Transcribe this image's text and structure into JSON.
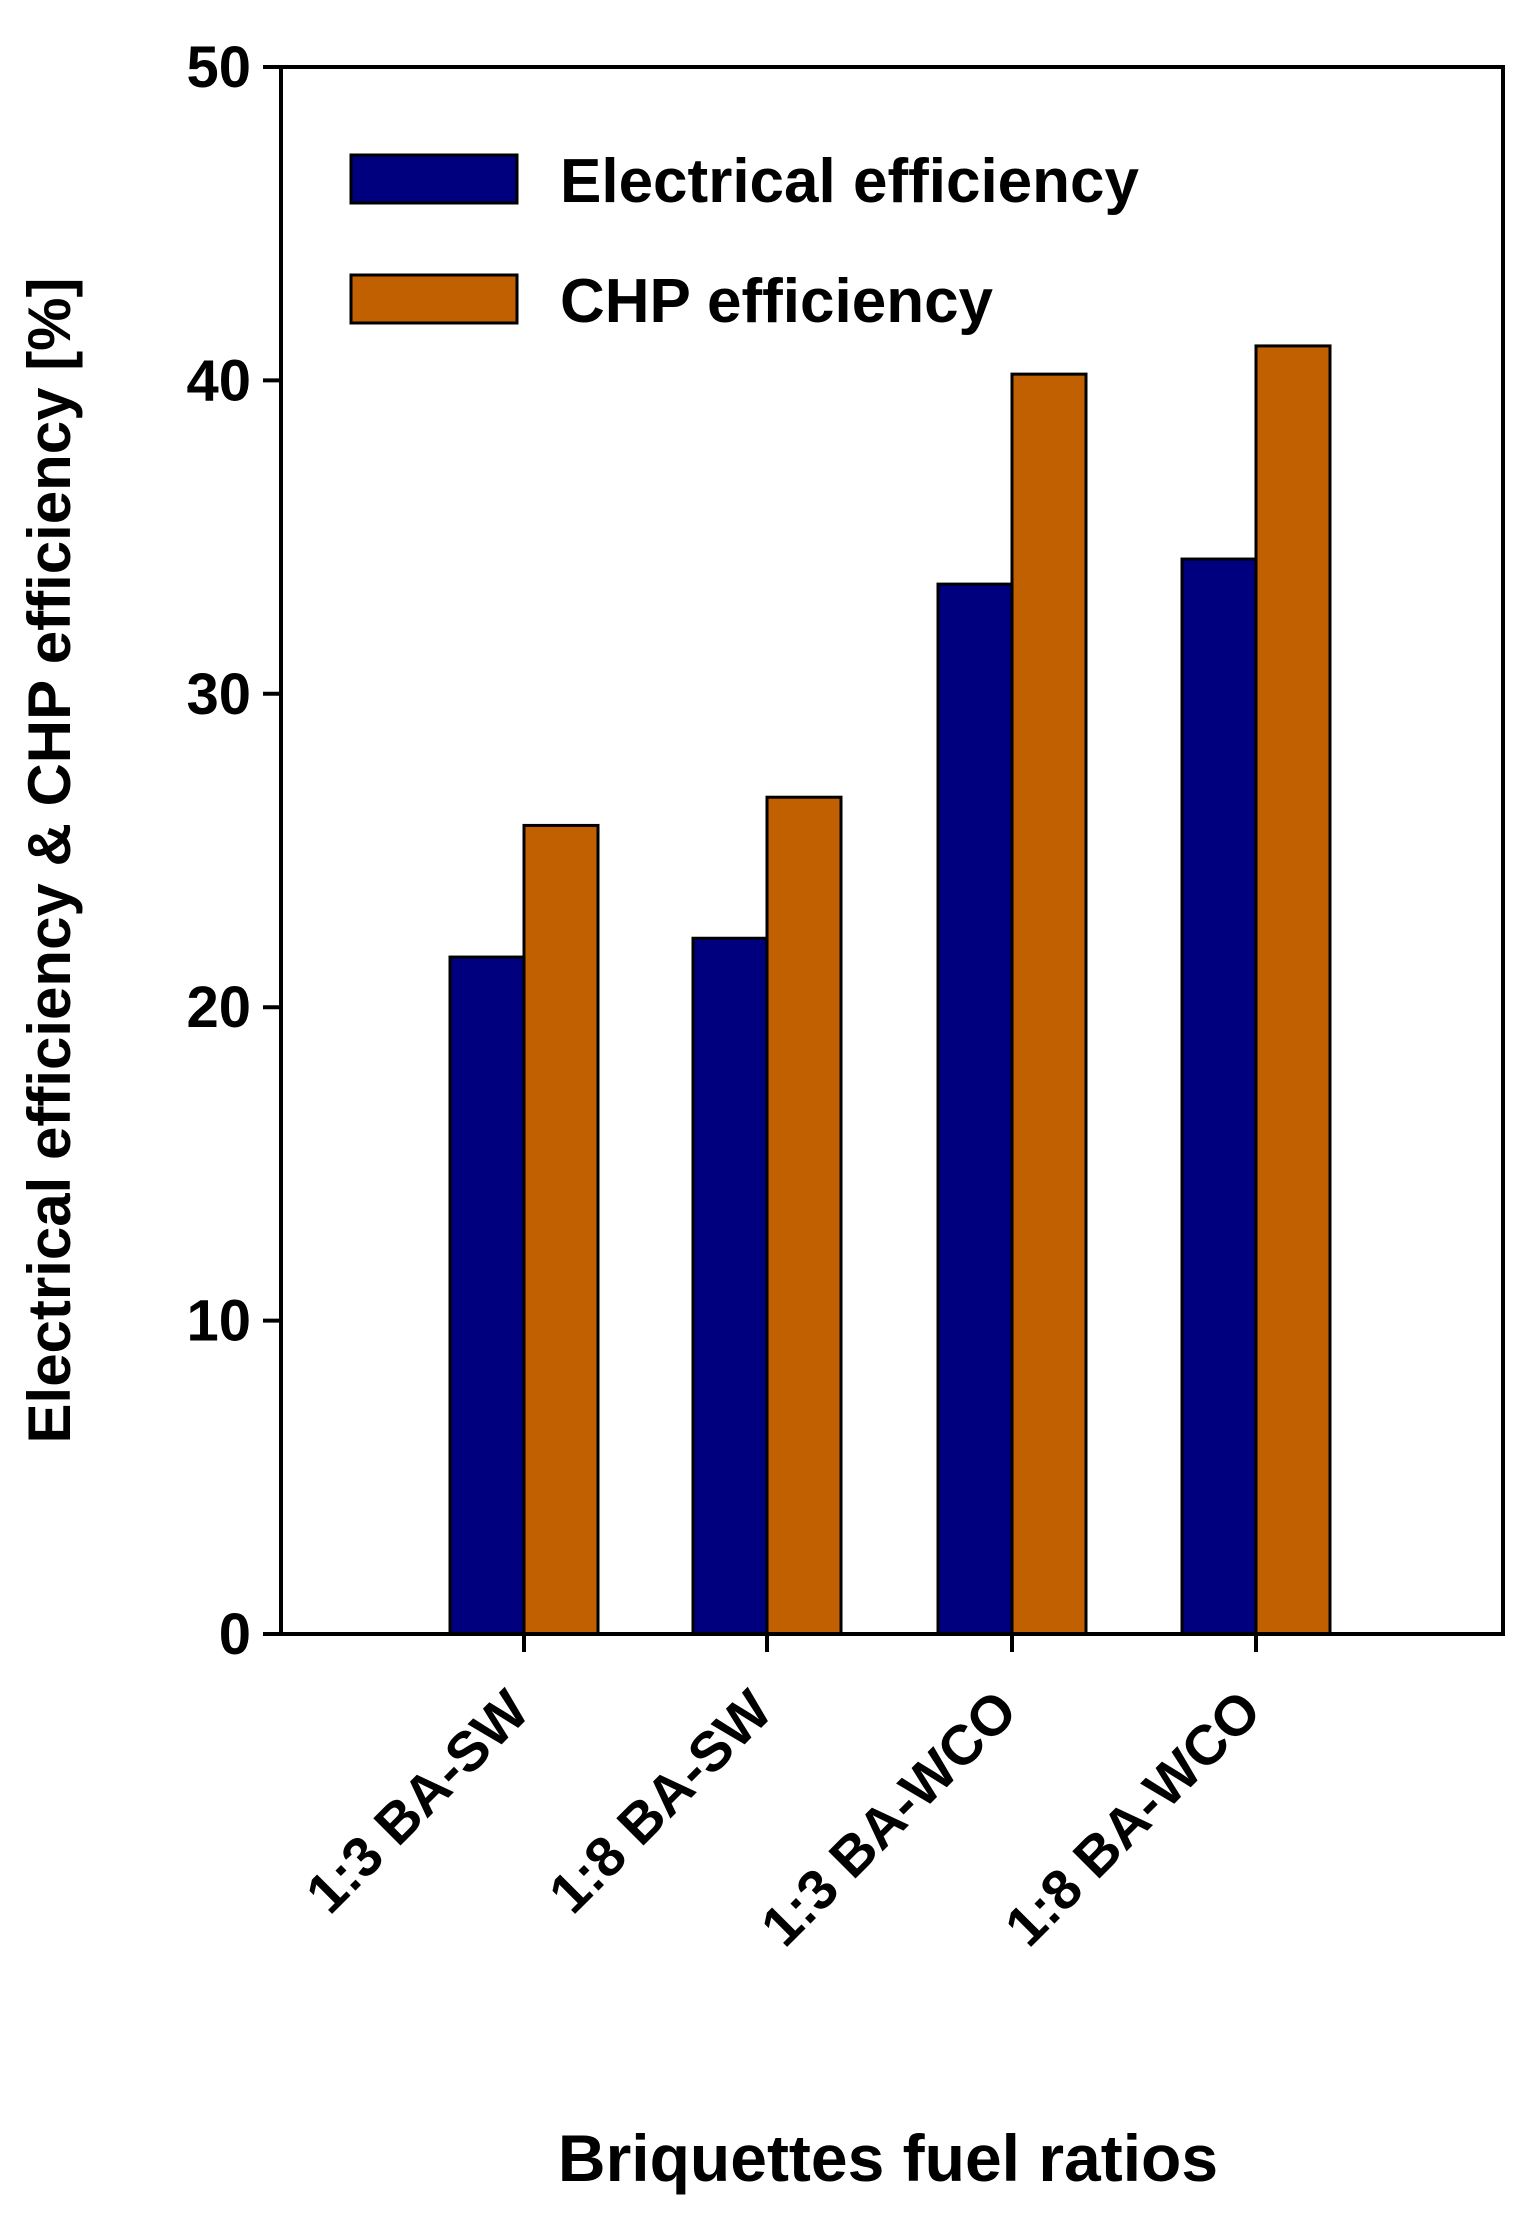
{
  "chart_data": {
    "type": "bar",
    "title": "",
    "xlabel": "Briquettes fuel ratios",
    "ylabel": "Electrical efficiency & CHP efficiency [%]",
    "ylim": [
      0,
      50
    ],
    "yticks": [
      "0",
      "10",
      "20",
      "30",
      "40",
      "50"
    ],
    "categories": [
      "1:3 BA-SW",
      "1:8 BA-SW",
      "1:3 BA-WCO",
      "1:8 BA-WCO"
    ],
    "series": [
      {
        "name": "Electrical efficiency",
        "color": "#00007f",
        "values": [
          21.6,
          22.2,
          33.5,
          34.3
        ]
      },
      {
        "name": "CHP efficiency",
        "color": "#c06000",
        "values": [
          25.8,
          26.7,
          40.2,
          41.1
        ]
      }
    ],
    "grid": false,
    "legend": "top-left"
  }
}
